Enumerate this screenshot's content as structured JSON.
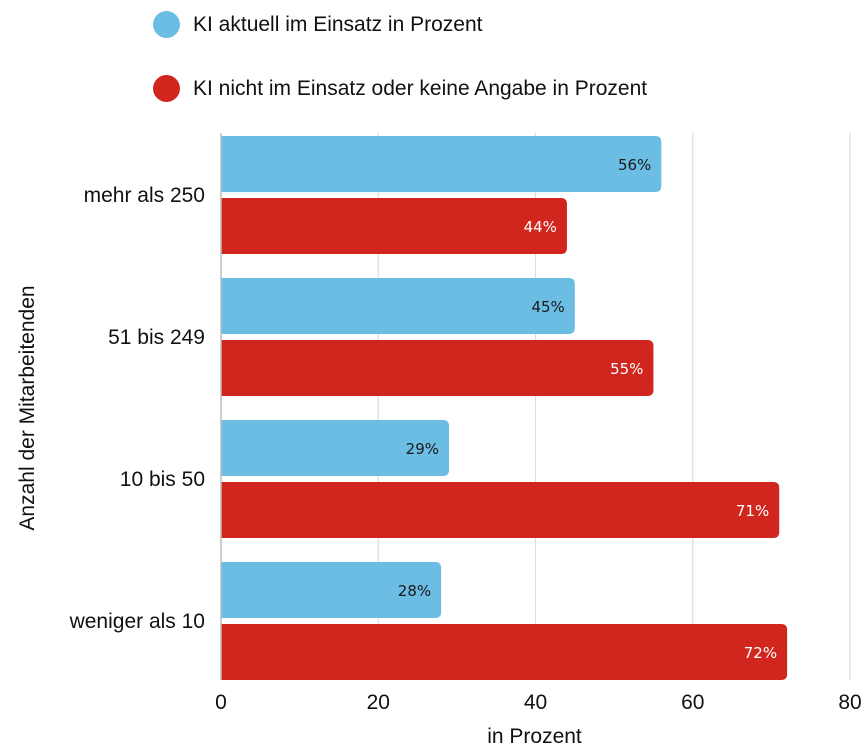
{
  "chart_data": {
    "type": "bar",
    "orientation": "horizontal",
    "categories": [
      "mehr als 250",
      "51 bis 249",
      "10 bis 50",
      "weniger als 10"
    ],
    "series": [
      {
        "name": "KI aktuell im Einsatz in Prozent",
        "color": "#6bbde3",
        "label_color": "#1a1a1a",
        "values": [
          56,
          45,
          29,
          28
        ],
        "labels": [
          "56%",
          "45%",
          "29%",
          "28%"
        ]
      },
      {
        "name": "KI nicht im Einsatz oder keine Angabe in Prozent",
        "color": "#d0261d",
        "label_color": "#ffffff",
        "values": [
          44,
          55,
          71,
          72
        ],
        "labels": [
          "44%",
          "55%",
          "71%",
          "72%"
        ]
      }
    ],
    "xlabel": "in Prozent",
    "ylabel": "Anzahl der Mitarbeitenden",
    "xlim": [
      0,
      80
    ],
    "xticks": [
      0,
      20,
      40,
      60,
      80
    ],
    "grid": true,
    "legend_position": "top"
  }
}
